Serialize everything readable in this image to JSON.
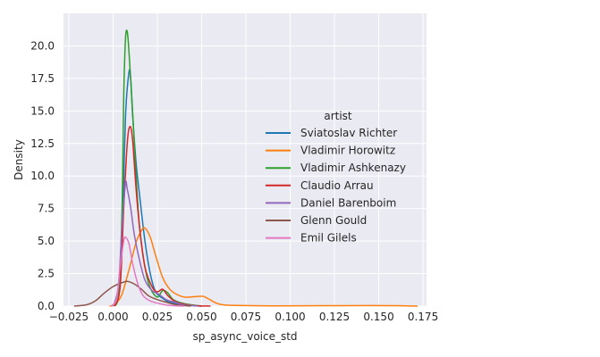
{
  "chart_data": {
    "type": "line",
    "subtype": "kde-density",
    "xlabel": "sp_async_voice_std",
    "ylabel": "Density",
    "xlim": [
      -0.028,
      0.177
    ],
    "ylim": [
      0,
      22.5
    ],
    "xticks": [
      -0.025,
      0.0,
      0.025,
      0.05,
      0.075,
      0.1,
      0.125,
      0.15,
      0.175
    ],
    "xtick_labels": [
      "−0.025",
      "0.000",
      "0.025",
      "0.050",
      "0.075",
      "0.100",
      "0.125",
      "0.150",
      "0.175"
    ],
    "yticks": [
      0,
      2.5,
      5,
      7.5,
      10,
      12.5,
      15,
      17.5,
      20
    ],
    "ytick_labels": [
      "0.0",
      "2.5",
      "5.0",
      "7.5",
      "10.0",
      "12.5",
      "15.0",
      "17.5",
      "20.0"
    ],
    "grid": true,
    "background": "#eaeaf2",
    "legend": {
      "title": "artist",
      "placement": "center-right"
    },
    "series": [
      {
        "name": "Sviatoslav Richter",
        "color": "#1f77b4",
        "points": [
          [
            0.0,
            0.0
          ],
          [
            0.003,
            0.6
          ],
          [
            0.005,
            5.0
          ],
          [
            0.007,
            14.5
          ],
          [
            0.009,
            18.0
          ],
          [
            0.01,
            17.4
          ],
          [
            0.011,
            14.8
          ],
          [
            0.013,
            11.0
          ],
          [
            0.015,
            8.5
          ],
          [
            0.018,
            5.0
          ],
          [
            0.021,
            2.5
          ],
          [
            0.024,
            1.1
          ],
          [
            0.028,
            0.6
          ],
          [
            0.032,
            0.3
          ],
          [
            0.04,
            0.1
          ],
          [
            0.05,
            0.0
          ]
        ]
      },
      {
        "name": "Vladimir Horowitz",
        "color": "#ff7f0e",
        "points": [
          [
            -0.002,
            0.0
          ],
          [
            0.001,
            0.1
          ],
          [
            0.005,
            0.9
          ],
          [
            0.009,
            2.8
          ],
          [
            0.013,
            4.9
          ],
          [
            0.016,
            5.8
          ],
          [
            0.018,
            6.0
          ],
          [
            0.021,
            5.3
          ],
          [
            0.024,
            3.9
          ],
          [
            0.028,
            2.2
          ],
          [
            0.032,
            1.3
          ],
          [
            0.036,
            0.9
          ],
          [
            0.04,
            0.7
          ],
          [
            0.044,
            0.7
          ],
          [
            0.048,
            0.75
          ],
          [
            0.051,
            0.75
          ],
          [
            0.054,
            0.55
          ],
          [
            0.058,
            0.25
          ],
          [
            0.062,
            0.1
          ],
          [
            0.07,
            0.05
          ],
          [
            0.09,
            0.02
          ],
          [
            0.12,
            0.03
          ],
          [
            0.145,
            0.04
          ],
          [
            0.16,
            0.03
          ],
          [
            0.172,
            0.0
          ]
        ]
      },
      {
        "name": "Vladimir Ashkenazy",
        "color": "#2ca02c",
        "points": [
          [
            0.001,
            0.0
          ],
          [
            0.003,
            0.8
          ],
          [
            0.005,
            7.0
          ],
          [
            0.006,
            16.0
          ],
          [
            0.007,
            20.5
          ],
          [
            0.008,
            21.1
          ],
          [
            0.009,
            19.5
          ],
          [
            0.011,
            15.0
          ],
          [
            0.013,
            10.0
          ],
          [
            0.015,
            6.0
          ],
          [
            0.018,
            3.0
          ],
          [
            0.021,
            1.4
          ],
          [
            0.025,
            0.7
          ],
          [
            0.028,
            1.2
          ],
          [
            0.031,
            1.0
          ],
          [
            0.034,
            0.5
          ],
          [
            0.04,
            0.2
          ],
          [
            0.05,
            0.0
          ]
        ]
      },
      {
        "name": "Claudio Arrau",
        "color": "#d62728",
        "points": [
          [
            0.001,
            0.0
          ],
          [
            0.004,
            1.5
          ],
          [
            0.006,
            7.5
          ],
          [
            0.008,
            12.5
          ],
          [
            0.0095,
            13.8
          ],
          [
            0.011,
            12.8
          ],
          [
            0.013,
            9.0
          ],
          [
            0.015,
            6.0
          ],
          [
            0.018,
            3.0
          ],
          [
            0.022,
            1.5
          ],
          [
            0.025,
            1.1
          ],
          [
            0.028,
            1.3
          ],
          [
            0.031,
            0.8
          ],
          [
            0.036,
            0.3
          ],
          [
            0.045,
            0.05
          ],
          [
            0.055,
            0.0
          ]
        ]
      },
      {
        "name": "Daniel Barenboim",
        "color": "#9467bd",
        "points": [
          [
            0.0,
            0.0
          ],
          [
            0.003,
            1.5
          ],
          [
            0.005,
            6.0
          ],
          [
            0.007,
            9.4
          ],
          [
            0.008,
            9.0
          ],
          [
            0.01,
            7.5
          ],
          [
            0.012,
            5.5
          ],
          [
            0.015,
            3.5
          ],
          [
            0.018,
            2.0
          ],
          [
            0.022,
            1.2
          ],
          [
            0.026,
            0.9
          ],
          [
            0.03,
            0.5
          ],
          [
            0.035,
            0.3
          ],
          [
            0.04,
            0.1
          ],
          [
            0.048,
            0.0
          ]
        ]
      },
      {
        "name": "Glenn Gould",
        "color": "#8c564b",
        "points": [
          [
            -0.022,
            0.0
          ],
          [
            -0.015,
            0.1
          ],
          [
            -0.01,
            0.4
          ],
          [
            -0.005,
            1.0
          ],
          [
            0.0,
            1.5
          ],
          [
            0.005,
            1.8
          ],
          [
            0.008,
            1.9
          ],
          [
            0.012,
            1.7
          ],
          [
            0.016,
            1.3
          ],
          [
            0.02,
            0.8
          ],
          [
            0.025,
            0.5
          ],
          [
            0.03,
            0.3
          ],
          [
            0.036,
            0.1
          ],
          [
            0.044,
            0.0
          ]
        ]
      },
      {
        "name": "Emil Gilels",
        "color": "#e377c2",
        "points": [
          [
            -0.001,
            0.0
          ],
          [
            0.002,
            0.6
          ],
          [
            0.004,
            3.0
          ],
          [
            0.006,
            5.0
          ],
          [
            0.007,
            5.3
          ],
          [
            0.009,
            4.8
          ],
          [
            0.011,
            3.3
          ],
          [
            0.014,
            1.7
          ],
          [
            0.017,
            0.8
          ],
          [
            0.021,
            0.4
          ],
          [
            0.026,
            0.2
          ],
          [
            0.032,
            0.05
          ],
          [
            0.04,
            0.0
          ]
        ]
      }
    ]
  }
}
